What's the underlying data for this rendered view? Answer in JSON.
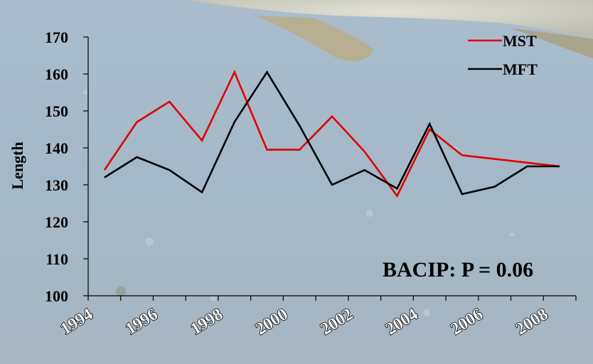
{
  "chart_data": {
    "type": "line",
    "ylabel": "Length",
    "xlabel": "",
    "ylim": [
      100,
      170
    ],
    "yticks": [
      "100",
      "110",
      "120",
      "130",
      "140",
      "150",
      "160",
      "170"
    ],
    "xlim": [
      1994,
      2009
    ],
    "xticks": [
      "1994",
      "1996",
      "1998",
      "2000",
      "2002",
      "2004",
      "2006",
      "2008"
    ],
    "legend_position": "top-right",
    "annotation": "BACIP: P = 0.06",
    "series": [
      {
        "name": "MST",
        "color": "#e00000",
        "x": [
          1994.5,
          1995.5,
          1996.5,
          1997.5,
          1998.5,
          1999.5,
          2000.5,
          2001.5,
          2002.5,
          2003.5,
          2004.5,
          2005.5,
          2006.5,
          2007.5,
          2008.5
        ],
        "values": [
          134,
          147,
          152.5,
          142,
          160.5,
          139.5,
          139.5,
          148.5,
          139,
          127,
          145,
          138,
          137,
          136,
          135
        ]
      },
      {
        "name": "MFT",
        "color": "#000000",
        "x": [
          1994.5,
          1995.5,
          1996.5,
          1997.5,
          1998.5,
          1999.5,
          2000.5,
          2001.5,
          2002.5,
          2003.5,
          2004.5,
          2005.5,
          2006.5,
          2007.5,
          2008.5
        ],
        "values": [
          132,
          137.5,
          134,
          128,
          147,
          160.5,
          146,
          130,
          134,
          129,
          146.5,
          127.5,
          129.5,
          135,
          135
        ]
      }
    ]
  }
}
